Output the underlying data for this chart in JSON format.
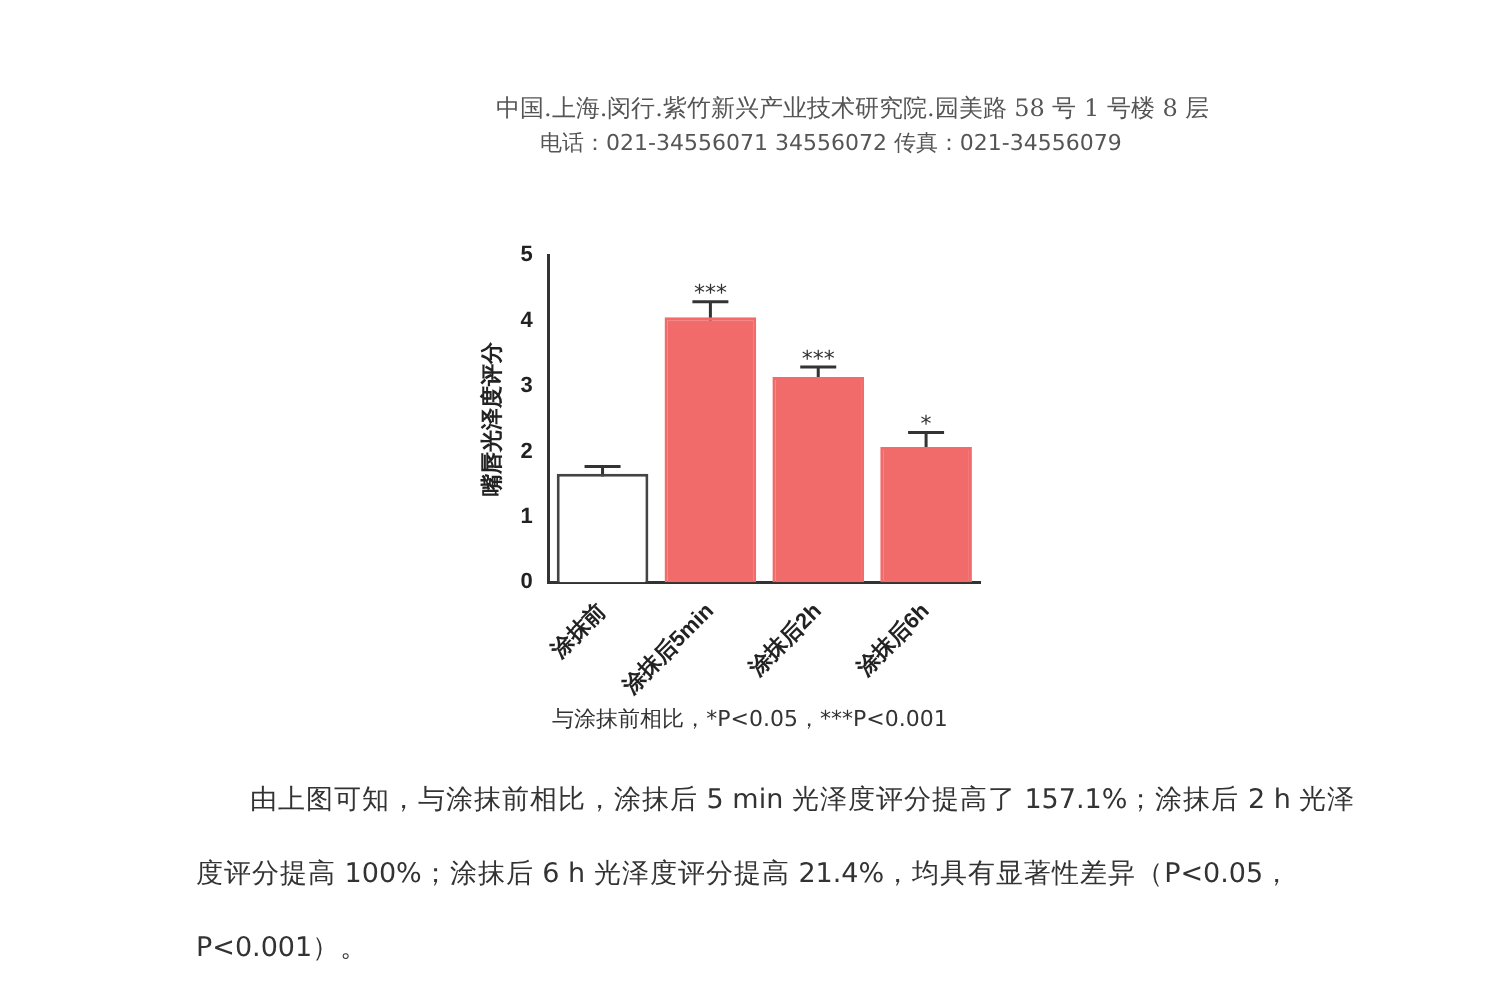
{
  "chart_data": {
    "type": "bar",
    "ylabel": "嘴唇光泽度评分",
    "categories": [
      "涂抹前",
      "涂抹后5min",
      "涂抹后2h",
      "涂抹后6h"
    ],
    "values": [
      1.66,
      4.05,
      3.14,
      2.07
    ],
    "colors": [
      "#ffffff",
      "#f26b6b",
      "#f26b6b",
      "#f26b6b"
    ],
    "errors": [
      0.11,
      0.24,
      0.15,
      0.22
    ],
    "ylim": [
      0,
      5
    ],
    "yticks": [
      0,
      1,
      2,
      3,
      4,
      5
    ],
    "grid": false,
    "legend": false,
    "annotations": [
      "中国.上海.闵行.紫竹新兴产业技术研究院.园美路 58 号 1 号楼 8 层",
      "电话：021-34556071 34556072      传真：021-34556079",
      {
        "text": "***",
        "x": "涂抹后5min",
        "y": 4.29
      },
      {
        "text": "***",
        "x": "涂抹后2h",
        "y": 3.29
      },
      {
        "text": "*",
        "x": "涂抹后6h",
        "y": 2.29
      },
      "与涂抹前相比，*P<0.05，***P<0.001",
      "由上图可知，与涂抹前相比，涂抹后 5 min 光泽度评分提高了 157.1%；涂抹后 2 h 光泽度评分提高 100%；涂抹后 6 h 光泽度评分提高 21.4%，均具有显著性差异（P<0.05，P<0.001）。"
    ]
  }
}
